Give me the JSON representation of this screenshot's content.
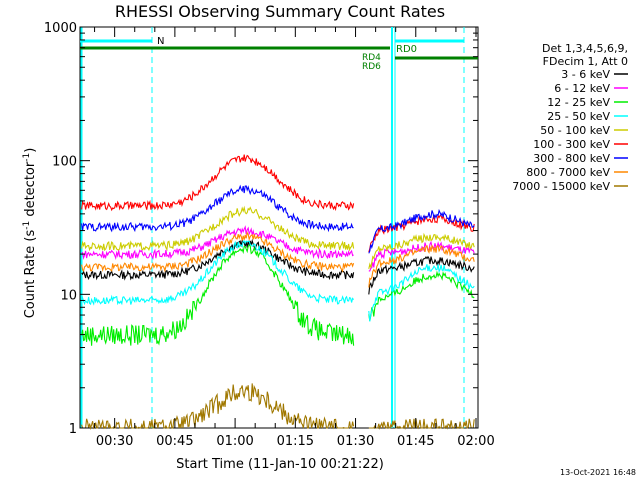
{
  "chart_data": {
    "type": "line",
    "title": "RHESSI Observing Summary Count Rates",
    "xlabel": "Start Time (11-Jan-10 00:21:22)",
    "ylabel_main": "Count Rate (s",
    "ylabel_sup1": "-1",
    "ylabel_mid": " detector",
    "ylabel_sup2": "-1",
    "ylabel_end": ")",
    "yscale": "log",
    "ylim": [
      1,
      1000
    ],
    "xlim_minutes": [
      21.37,
      120.5
    ],
    "x_ticks": [
      "00:30",
      "00:45",
      "01:00",
      "01:15",
      "01:30",
      "01:45",
      "02:00"
    ],
    "x_tick_minutes": [
      30,
      45,
      60,
      75,
      90,
      105,
      120
    ],
    "y_ticks": [
      "1",
      "10",
      "100",
      "1000"
    ],
    "y_tick_values": [
      1,
      10,
      100,
      1000
    ],
    "legend_header": [
      "Det 1,3,4,5,6,9,",
      "FDecim 1, Att 0"
    ],
    "footer_date": "13-Oct-2021 16:48",
    "series": [
      {
        "name": "3 - 6 keV",
        "color": "#000000",
        "base": 14,
        "peak": 24,
        "post_peak": 18,
        "post_end": 15
      },
      {
        "name": "6 - 12 keV",
        "color": "#ff00ff",
        "base": 20,
        "peak": 30,
        "post_peak": 23,
        "post_end": 20
      },
      {
        "name": "12 - 25 keV",
        "color": "#00ee00",
        "base": 5,
        "peak": 22,
        "post_peak": 14,
        "post_end": 9
      },
      {
        "name": "25 - 50 keV",
        "color": "#00ffff",
        "base": 9,
        "peak": 24,
        "post_peak": 16,
        "post_end": 10
      },
      {
        "name": "50 - 100 keV",
        "color": "#cccc00",
        "base": 23,
        "peak": 42,
        "post_peak": 27,
        "post_end": 22
      },
      {
        "name": "100 - 300 keV",
        "color": "#ff0000",
        "base": 46,
        "peak": 104,
        "post_peak": 37,
        "post_end": 30
      },
      {
        "name": "300 - 800 keV",
        "color": "#0000ff",
        "base": 32,
        "peak": 61,
        "post_peak": 40,
        "post_end": 30
      },
      {
        "name": "800 - 7000 keV",
        "color": "#ff8800",
        "base": 16,
        "peak": 27,
        "post_peak": 22,
        "post_end": 17
      },
      {
        "name": "7000 - 15000 keV",
        "color": "#a07800",
        "base": 1,
        "peak": 1.9,
        "post_peak": 1,
        "post_end": 1
      }
    ],
    "annotations": {
      "night_label": "N",
      "decimation_labels": [
        "RD0",
        "RD4",
        "RD6"
      ],
      "saa_color": "#00ffff",
      "decim_color": "#008000"
    }
  }
}
